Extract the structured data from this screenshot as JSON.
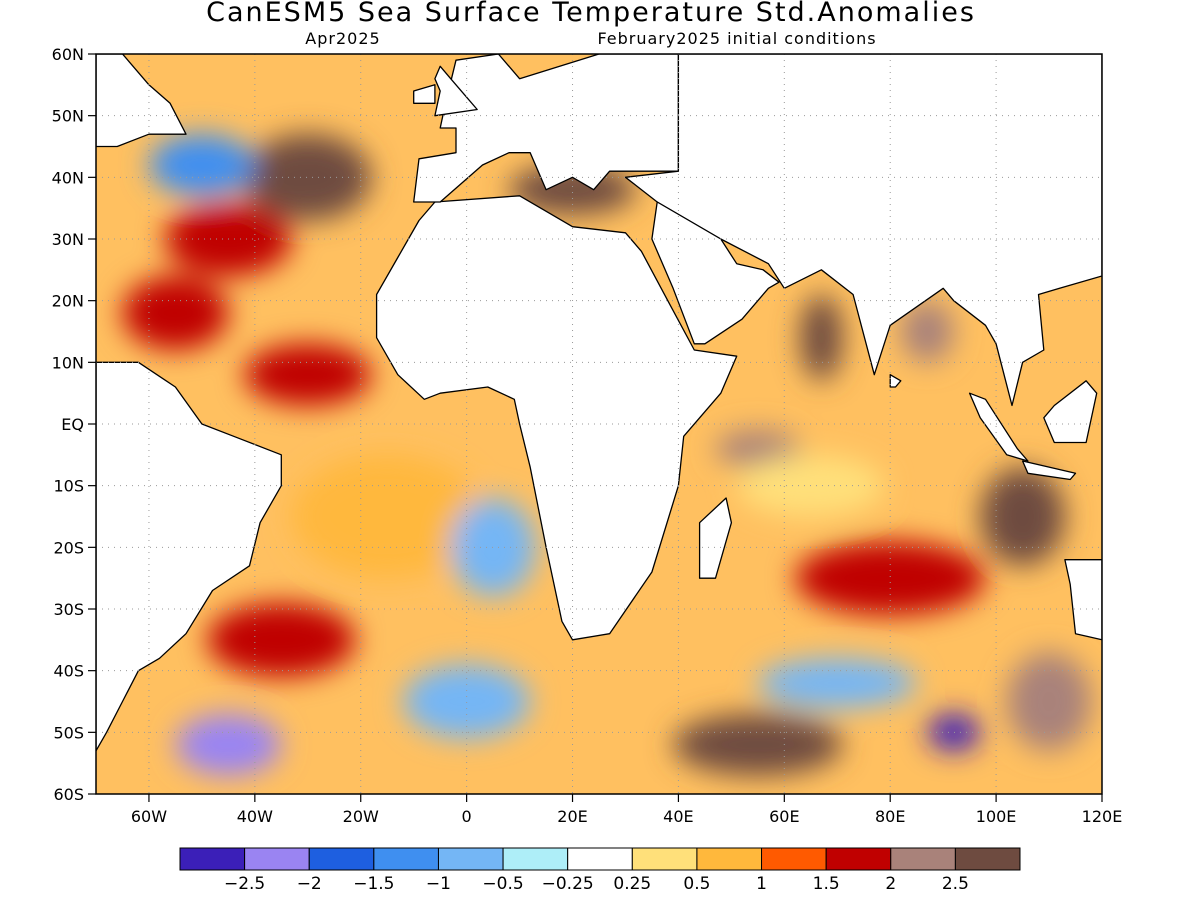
{
  "title": "CanESM5 Sea Surface Temperature Std.Anomalies",
  "subtitle_left": "Apr2025",
  "subtitle_right": "February2025 initial conditions",
  "map": {
    "lon_range": [
      -70,
      120
    ],
    "lat_range": [
      -60,
      60
    ],
    "lon_ticks": [
      {
        "lon": -60,
        "label": "60W"
      },
      {
        "lon": -40,
        "label": "40W"
      },
      {
        "lon": -20,
        "label": "20W"
      },
      {
        "lon": 0,
        "label": "0"
      },
      {
        "lon": 20,
        "label": "20E"
      },
      {
        "lon": 40,
        "label": "40E"
      },
      {
        "lon": 60,
        "label": "60E"
      },
      {
        "lon": 80,
        "label": "80E"
      },
      {
        "lon": 100,
        "label": "100E"
      },
      {
        "lon": 120,
        "label": "120E"
      }
    ],
    "lat_ticks": [
      {
        "lat": 60,
        "label": "60N"
      },
      {
        "lat": 50,
        "label": "50N"
      },
      {
        "lat": 40,
        "label": "40N"
      },
      {
        "lat": 30,
        "label": "30N"
      },
      {
        "lat": 20,
        "label": "20N"
      },
      {
        "lat": 10,
        "label": "10N"
      },
      {
        "lat": 0,
        "label": "EQ"
      },
      {
        "lat": -10,
        "label": "10S"
      },
      {
        "lat": -20,
        "label": "20S"
      },
      {
        "lat": -30,
        "label": "30S"
      },
      {
        "lat": -40,
        "label": "40S"
      },
      {
        "lat": -50,
        "label": "50S"
      },
      {
        "lat": -60,
        "label": "60S"
      }
    ],
    "grid": true
  },
  "colorbar": {
    "colors": [
      "#3b1fb8",
      "#9a84f2",
      "#1e5fe0",
      "#3f8ff0",
      "#74b6f5",
      "#aeeef8",
      "#ffffff",
      "#ffe07a",
      "#ffb83c",
      "#ff5a00",
      "#c00000",
      "#a9827a",
      "#6e4b40"
    ],
    "labels": [
      "−2.5",
      "−2",
      "−1.5",
      "−1",
      "−0.5",
      "−0.25",
      "0.25",
      "0.5",
      "1",
      "1.5",
      "2",
      "2.5"
    ]
  },
  "anomaly_regions": [
    {
      "lon": -30,
      "lat": 40,
      "rx": 12,
      "ry": 7,
      "level": 12
    },
    {
      "lon": -45,
      "lat": 30,
      "rx": 12,
      "ry": 6,
      "level": 10
    },
    {
      "lon": -50,
      "lat": 42,
      "rx": 10,
      "ry": 5,
      "level": 3
    },
    {
      "lon": -55,
      "lat": 18,
      "rx": 10,
      "ry": 6,
      "level": 10
    },
    {
      "lon": -30,
      "lat": 8,
      "rx": 12,
      "ry": 5,
      "level": 10
    },
    {
      "lon": -15,
      "lat": -15,
      "rx": 18,
      "ry": 10,
      "level": 8
    },
    {
      "lon": 5,
      "lat": -20,
      "rx": 8,
      "ry": 8,
      "level": 4
    },
    {
      "lon": -35,
      "lat": -35,
      "rx": 14,
      "ry": 6,
      "level": 10
    },
    {
      "lon": -45,
      "lat": -52,
      "rx": 10,
      "ry": 5,
      "level": 1
    },
    {
      "lon": 0,
      "lat": -45,
      "rx": 12,
      "ry": 6,
      "level": 4
    },
    {
      "lon": 55,
      "lat": -4,
      "rx": 8,
      "ry": 3,
      "level": 11
    },
    {
      "lon": 65,
      "lat": -10,
      "rx": 14,
      "ry": 5,
      "level": 7
    },
    {
      "lon": 67,
      "lat": 14,
      "rx": 4,
      "ry": 7,
      "level": 12
    },
    {
      "lon": 87,
      "lat": 15,
      "rx": 5,
      "ry": 5,
      "level": 11
    },
    {
      "lon": 105,
      "lat": -15,
      "rx": 8,
      "ry": 8,
      "level": 12
    },
    {
      "lon": 80,
      "lat": -25,
      "rx": 18,
      "ry": 6,
      "level": 10
    },
    {
      "lon": 70,
      "lat": -42,
      "rx": 15,
      "ry": 4,
      "level": 4
    },
    {
      "lon": 55,
      "lat": -52,
      "rx": 16,
      "ry": 5,
      "level": 12
    },
    {
      "lon": 92,
      "lat": -50,
      "rx": 5,
      "ry": 3,
      "level": 0
    },
    {
      "lon": 110,
      "lat": -45,
      "rx": 8,
      "ry": 8,
      "level": 11
    },
    {
      "lon": 20,
      "lat": 38,
      "rx": 12,
      "ry": 4,
      "level": 12
    }
  ],
  "land": [
    [
      [
        -17,
        21
      ],
      [
        -13,
        27
      ],
      [
        -9,
        33
      ],
      [
        -6,
        36
      ],
      [
        10,
        37
      ],
      [
        20,
        32
      ],
      [
        30,
        31
      ],
      [
        33,
        28
      ],
      [
        38,
        20
      ],
      [
        43,
        12
      ],
      [
        51,
        11
      ],
      [
        48,
        5
      ],
      [
        41,
        -2
      ],
      [
        40,
        -10
      ],
      [
        35,
        -24
      ],
      [
        27,
        -34
      ],
      [
        20,
        -35
      ],
      [
        18,
        -32
      ],
      [
        15,
        -20
      ],
      [
        12,
        -7
      ],
      [
        10,
        0
      ],
      [
        9,
        4
      ],
      [
        4,
        6
      ],
      [
        -5,
        5
      ],
      [
        -8,
        4
      ],
      [
        -13,
        8
      ],
      [
        -17,
        14
      ]
    ],
    [
      [
        -10,
        36
      ],
      [
        -9,
        43
      ],
      [
        -2,
        44
      ],
      [
        -2,
        48
      ],
      [
        -5,
        48
      ],
      [
        -4,
        52
      ],
      [
        -2,
        59
      ],
      [
        6,
        60
      ],
      [
        10,
        56
      ],
      [
        25,
        60
      ],
      [
        40,
        60
      ],
      [
        40,
        41
      ],
      [
        27,
        41
      ],
      [
        24,
        38
      ],
      [
        20,
        40
      ],
      [
        15,
        38
      ],
      [
        12,
        44
      ],
      [
        8,
        44
      ],
      [
        3,
        42
      ],
      [
        -5,
        36
      ]
    ],
    [
      [
        30,
        40
      ],
      [
        36,
        36
      ],
      [
        48,
        30
      ],
      [
        57,
        26
      ],
      [
        60,
        22
      ],
      [
        67,
        25
      ],
      [
        73,
        21
      ],
      [
        77,
        8
      ],
      [
        80,
        16
      ],
      [
        90,
        22
      ],
      [
        92,
        20
      ],
      [
        98,
        16
      ],
      [
        100,
        13
      ],
      [
        103,
        3
      ],
      [
        105,
        10
      ],
      [
        109,
        12
      ],
      [
        108,
        21
      ],
      [
        112,
        22
      ],
      [
        120,
        24
      ],
      [
        120,
        60
      ],
      [
        40,
        60
      ],
      [
        40,
        41
      ]
    ],
    [
      [
        35,
        30
      ],
      [
        39,
        22
      ],
      [
        43,
        13
      ],
      [
        45,
        13
      ],
      [
        52,
        17
      ],
      [
        57,
        22
      ],
      [
        59,
        23
      ],
      [
        56,
        25
      ],
      [
        51,
        26
      ],
      [
        48,
        30
      ],
      [
        36,
        36
      ]
    ],
    [
      [
        -70,
        10
      ],
      [
        -62,
        10
      ],
      [
        -55,
        6
      ],
      [
        -50,
        0
      ],
      [
        -44,
        -2
      ],
      [
        -35,
        -5
      ],
      [
        -35,
        -10
      ],
      [
        -39,
        -16
      ],
      [
        -41,
        -23
      ],
      [
        -48,
        -27
      ],
      [
        -53,
        -34
      ],
      [
        -58,
        -38
      ],
      [
        -62,
        -40
      ],
      [
        -65,
        -45
      ],
      [
        -68,
        -50
      ],
      [
        -70,
        -53
      ]
    ],
    [
      [
        -70,
        45
      ],
      [
        -66,
        45
      ],
      [
        -60,
        47
      ],
      [
        -53,
        47
      ],
      [
        -56,
        52
      ],
      [
        -60,
        55
      ],
      [
        -65,
        60
      ],
      [
        -70,
        60
      ]
    ],
    [
      [
        113,
        -22
      ],
      [
        114,
        -26
      ],
      [
        115,
        -34
      ],
      [
        120,
        -35
      ],
      [
        120,
        -22
      ]
    ],
    [
      [
        44,
        -25
      ],
      [
        47,
        -25
      ],
      [
        50,
        -16
      ],
      [
        49,
        -12
      ],
      [
        44,
        -16
      ]
    ],
    [
      [
        95,
        5
      ],
      [
        98,
        4
      ],
      [
        104,
        -4
      ],
      [
        106,
        -6
      ],
      [
        102,
        -5
      ],
      [
        97,
        1
      ]
    ],
    [
      [
        105,
        -6
      ],
      [
        115,
        -8
      ],
      [
        114,
        -9
      ],
      [
        106,
        -8
      ]
    ],
    [
      [
        109,
        1
      ],
      [
        111,
        3
      ],
      [
        117,
        7
      ],
      [
        119,
        5
      ],
      [
        117,
        -3
      ],
      [
        111,
        -3
      ]
    ],
    [
      [
        80,
        8
      ],
      [
        82,
        7
      ],
      [
        81,
        6
      ],
      [
        80,
        6
      ]
    ],
    [
      [
        -6,
        50
      ],
      [
        2,
        51
      ],
      [
        0,
        53
      ],
      [
        -3,
        56
      ],
      [
        -5,
        58
      ],
      [
        -6,
        56
      ],
      [
        -5,
        54
      ]
    ],
    [
      [
        -10,
        52
      ],
      [
        -6,
        52
      ],
      [
        -6,
        55
      ],
      [
        -10,
        54
      ]
    ],
    [
      [
        -24,
        64
      ],
      [
        -14,
        64
      ],
      [
        -14,
        66
      ],
      [
        -24,
        66
      ]
    ]
  ]
}
